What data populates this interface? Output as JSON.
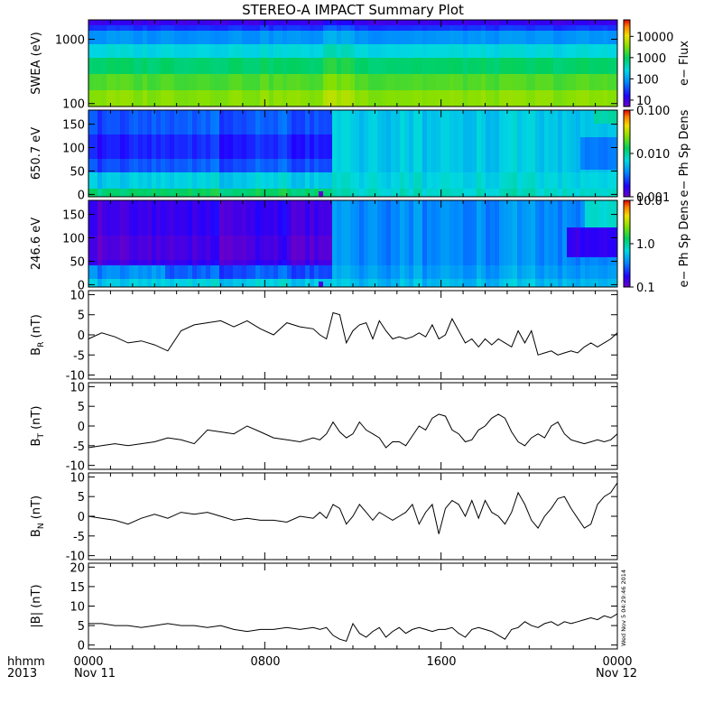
{
  "title": "STEREO-A IMPACT Summary Plot",
  "footer": {
    "left_line1": "hhmm",
    "left_line2": "2013",
    "time_ticks": [
      "0000",
      "0800",
      "1600",
      "0000"
    ],
    "date_labels": [
      "Nov 11",
      "Nov 12"
    ],
    "stamp": "Wed Nov 5 04:29:46 2014"
  },
  "chart_data": [
    {
      "type": "heatmap",
      "name": "swea",
      "ylabel": "SWEA (eV)",
      "yscale": "log",
      "ylim": [
        90,
        2000
      ],
      "yticks": [
        {
          "v": 1000,
          "label": "1000"
        },
        {
          "v": 100,
          "label": "100"
        }
      ],
      "colorbar": {
        "label": "e− Flux",
        "scale": "log",
        "range": [
          5,
          60000
        ],
        "ticks": [
          {
            "v": 10000,
            "label": "10000"
          },
          {
            "v": 1000,
            "label": "1000"
          },
          {
            "v": 100,
            "label": "100"
          },
          {
            "v": 10,
            "label": "10"
          }
        ]
      }
    },
    {
      "type": "heatmap",
      "name": "pad650",
      "ylabel": "650.7 eV",
      "yscale": "linear",
      "ylim": [
        -5,
        180
      ],
      "yticks": [
        {
          "v": 150,
          "label": "150"
        },
        {
          "v": 100,
          "label": "100"
        },
        {
          "v": 50,
          "label": "50"
        },
        {
          "v": 0,
          "label": "0"
        }
      ],
      "colorbar": {
        "label": "e− Ph Sp Dens",
        "scale": "log",
        "range": [
          0.001,
          0.1
        ],
        "ticks": [
          {
            "v": 0.1,
            "label": "0.100"
          },
          {
            "v": 0.01,
            "label": "0.010"
          },
          {
            "v": 0.001,
            "label": "0.001"
          }
        ]
      }
    },
    {
      "type": "heatmap",
      "name": "pad246",
      "ylabel": "246.6 eV",
      "yscale": "linear",
      "ylim": [
        -5,
        180
      ],
      "yticks": [
        {
          "v": 150,
          "label": "150"
        },
        {
          "v": 100,
          "label": "100"
        },
        {
          "v": 50,
          "label": "50"
        },
        {
          "v": 0,
          "label": "0"
        }
      ],
      "colorbar": {
        "label": "e− Ph Sp Dens",
        "scale": "log",
        "range": [
          0.1,
          10
        ],
        "ticks": [
          {
            "v": 10,
            "label": "10.0"
          },
          {
            "v": 1,
            "label": "1.0"
          },
          {
            "v": 0.1,
            "label": "0.1"
          }
        ]
      }
    },
    {
      "type": "line",
      "name": "br",
      "ylabel": "B",
      "ysub": "R",
      "yunit": " (nT)",
      "ylim": [
        -11,
        11
      ],
      "yticks": [
        10,
        5,
        0,
        -5,
        -10
      ],
      "x": [
        0,
        0.6,
        1.2,
        1.8,
        2.4,
        3.0,
        3.6,
        4.2,
        4.8,
        5.4,
        6.0,
        6.6,
        7.2,
        7.8,
        8.4,
        9.0,
        9.6,
        10.2,
        10.5,
        10.8,
        11.1,
        11.4,
        11.7,
        12.0,
        12.3,
        12.6,
        12.9,
        13.2,
        13.5,
        13.8,
        14.1,
        14.4,
        14.7,
        15.0,
        15.3,
        15.6,
        15.9,
        16.2,
        16.5,
        16.8,
        17.1,
        17.4,
        17.7,
        18.0,
        18.3,
        18.6,
        18.9,
        19.2,
        19.5,
        19.8,
        20.1,
        20.4,
        20.7,
        21.0,
        21.3,
        21.6,
        21.9,
        22.2,
        22.5,
        22.8,
        23.1,
        23.4,
        23.7,
        24.0
      ],
      "values": [
        -1,
        0.5,
        -0.5,
        -2,
        -1.5,
        -2.5,
        -4,
        1,
        2.5,
        3,
        3.5,
        2,
        3.5,
        1.5,
        0,
        3,
        2,
        1.5,
        0,
        -1,
        5.5,
        5,
        -2,
        1,
        2.5,
        3,
        -1,
        3.5,
        1,
        -1,
        -0.5,
        -1,
        -0.5,
        0.5,
        -0.5,
        2.5,
        -1,
        0,
        4,
        1,
        -2,
        -1,
        -3,
        -1,
        -2.5,
        -1,
        -2,
        -3,
        1,
        -2,
        1,
        -5,
        -4.5,
        -4,
        -5,
        -4.5,
        -4,
        -4.5,
        -3,
        -2,
        -3,
        -2,
        -1,
        0.5
      ]
    },
    {
      "type": "line",
      "name": "bt",
      "ylabel": "B",
      "ysub": "T",
      "yunit": " (nT)",
      "ylim": [
        -11,
        11
      ],
      "yticks": [
        10,
        5,
        0,
        -5,
        -10
      ],
      "x": [
        0,
        0.6,
        1.2,
        1.8,
        2.4,
        3.0,
        3.6,
        4.2,
        4.8,
        5.4,
        6.0,
        6.6,
        7.2,
        7.8,
        8.4,
        9.0,
        9.6,
        10.2,
        10.5,
        10.8,
        11.1,
        11.4,
        11.7,
        12.0,
        12.3,
        12.6,
        12.9,
        13.2,
        13.5,
        13.8,
        14.1,
        14.4,
        14.7,
        15.0,
        15.3,
        15.6,
        15.9,
        16.2,
        16.5,
        16.8,
        17.1,
        17.4,
        17.7,
        18.0,
        18.3,
        18.6,
        18.9,
        19.2,
        19.5,
        19.8,
        20.1,
        20.4,
        20.7,
        21.0,
        21.3,
        21.6,
        21.9,
        22.2,
        22.5,
        22.8,
        23.1,
        23.4,
        23.7,
        24.0
      ],
      "values": [
        -5.5,
        -5,
        -4.5,
        -5,
        -4.5,
        -4,
        -3,
        -3.5,
        -4.5,
        -1,
        -1.5,
        -2,
        0,
        -1.5,
        -3,
        -3.5,
        -4,
        -3,
        -3.5,
        -2,
        1,
        -1.5,
        -3,
        -2,
        1,
        -1,
        -2,
        -3,
        -5.5,
        -4,
        -4,
        -5,
        -2.5,
        0,
        -1,
        2,
        3,
        2.5,
        -1,
        -2,
        -4,
        -3.5,
        -1,
        0,
        2,
        3,
        2,
        -1.5,
        -4,
        -5,
        -3,
        -2,
        -3,
        0,
        1,
        -2,
        -3.5,
        -4,
        -4.5,
        -4,
        -3.5,
        -4,
        -3.5,
        -2
      ]
    },
    {
      "type": "line",
      "name": "bn",
      "ylabel": "B",
      "ysub": "N",
      "yunit": " (nT)",
      "ylim": [
        -11,
        11
      ],
      "yticks": [
        10,
        5,
        0,
        -5,
        -10
      ],
      "x": [
        0,
        0.6,
        1.2,
        1.8,
        2.4,
        3.0,
        3.6,
        4.2,
        4.8,
        5.4,
        6.0,
        6.6,
        7.2,
        7.8,
        8.4,
        9.0,
        9.6,
        10.2,
        10.5,
        10.8,
        11.1,
        11.4,
        11.7,
        12.0,
        12.3,
        12.6,
        12.9,
        13.2,
        13.5,
        13.8,
        14.1,
        14.4,
        14.7,
        15.0,
        15.3,
        15.6,
        15.9,
        16.2,
        16.5,
        16.8,
        17.1,
        17.4,
        17.7,
        18.0,
        18.3,
        18.6,
        18.9,
        19.2,
        19.5,
        19.8,
        20.1,
        20.4,
        20.7,
        21.0,
        21.3,
        21.6,
        21.9,
        22.2,
        22.5,
        22.8,
        23.1,
        23.4,
        23.7,
        24.0
      ],
      "values": [
        0,
        -0.5,
        -1,
        -2,
        -0.5,
        0.5,
        -0.5,
        1,
        0.5,
        1,
        0,
        -1,
        -0.5,
        -1,
        -1,
        -1.5,
        0,
        -0.5,
        1,
        -0.5,
        3,
        2,
        -2,
        0,
        3,
        1,
        -1,
        1,
        0,
        -1,
        0,
        1,
        3,
        -2,
        1,
        3,
        -4.5,
        2,
        4,
        3,
        0,
        4,
        -0.5,
        4,
        1,
        0,
        -2,
        1,
        6,
        3,
        -1,
        -3,
        0,
        2,
        4.5,
        5,
        2,
        -0.5,
        -3,
        -2,
        3,
        5,
        6,
        8.5
      ]
    },
    {
      "type": "line",
      "name": "btot",
      "ylabel": "|B| (nT)",
      "ylim": [
        -1,
        21
      ],
      "yticks": [
        20,
        15,
        10,
        5,
        0
      ],
      "x": [
        0,
        0.6,
        1.2,
        1.8,
        2.4,
        3.0,
        3.6,
        4.2,
        4.8,
        5.4,
        6.0,
        6.6,
        7.2,
        7.8,
        8.4,
        9.0,
        9.6,
        10.2,
        10.5,
        10.8,
        11.1,
        11.4,
        11.7,
        12.0,
        12.3,
        12.6,
        12.9,
        13.2,
        13.5,
        13.8,
        14.1,
        14.4,
        14.7,
        15.0,
        15.3,
        15.6,
        15.9,
        16.2,
        16.5,
        16.8,
        17.1,
        17.4,
        17.7,
        18.0,
        18.3,
        18.6,
        18.9,
        19.2,
        19.5,
        19.8,
        20.1,
        20.4,
        20.7,
        21.0,
        21.3,
        21.6,
        21.9,
        22.2,
        22.5,
        22.8,
        23.1,
        23.4,
        23.7,
        24.0
      ],
      "values": [
        5.5,
        5.5,
        5,
        5,
        4.5,
        5,
        5.5,
        5,
        5,
        4.5,
        5,
        4,
        3.5,
        4,
        4,
        4.5,
        4,
        4.5,
        4,
        4.5,
        2.5,
        1.5,
        1,
        5.5,
        3,
        2,
        3.5,
        4.5,
        2,
        3.5,
        4.5,
        3,
        4,
        4.5,
        4,
        3.5,
        4,
        4,
        4.5,
        3,
        2,
        4,
        4.5,
        4,
        3.5,
        2.5,
        1.5,
        4,
        4.5,
        6,
        5,
        4.5,
        5.5,
        6,
        5,
        6,
        5.5,
        6,
        6.5,
        7,
        6.5,
        7.5,
        7,
        8
      ]
    }
  ]
}
